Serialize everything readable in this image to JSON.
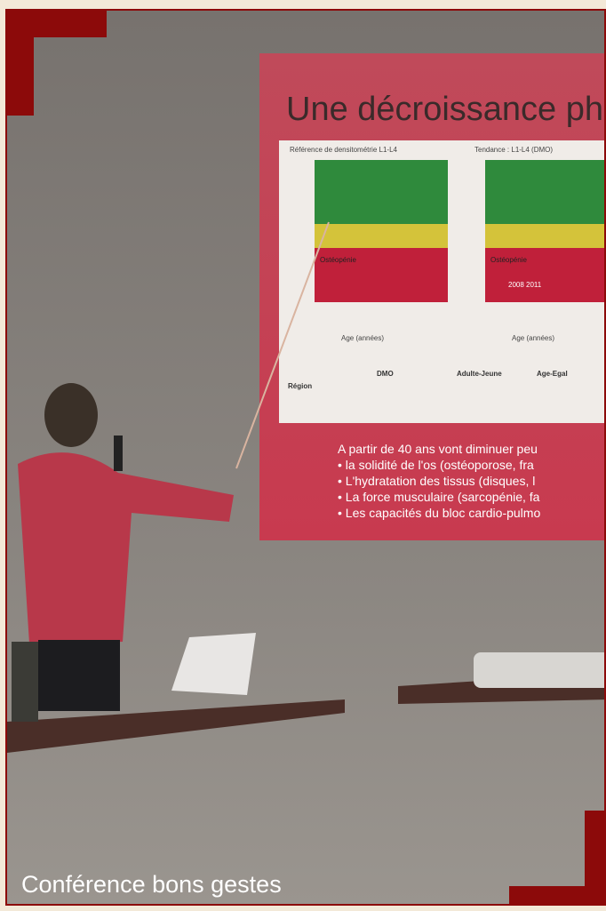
{
  "caption": "Conférence bons gestes",
  "slide": {
    "title": "Une décroissance ph",
    "chart_left": {
      "heading": "Référence de densitométrie L1-L4",
      "xlabel": "Age (années)",
      "zone": "Ostéopénie"
    },
    "chart_right": {
      "heading": "Tendance : L1-L4 (DMO)",
      "xlabel": "Age (années)",
      "zone": "Ostéopénie",
      "years": "2008 2011"
    },
    "table_headers": [
      "Région",
      "DMO",
      "Adulte-Jeune",
      "Age-Egal"
    ],
    "intro": "A partir de 40 ans vont diminuer peu",
    "bullets": [
      "• la solidité de l'os (ostéoporose, fra",
      "• L'hydratation des tissus (disques, l",
      "• La force musculaire (sarcopénie, fa",
      "• Les capacités du bloc cardio-pulmo"
    ]
  }
}
